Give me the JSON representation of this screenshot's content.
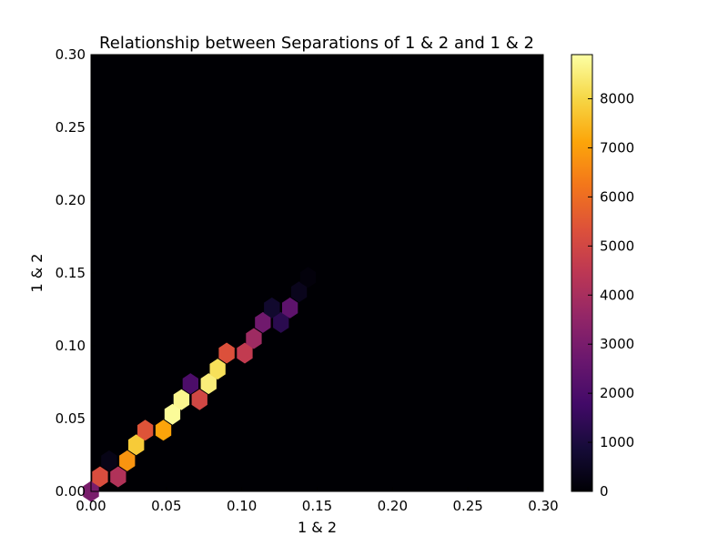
{
  "chart_data": {
    "type": "heatmap",
    "subtype": "hexbin",
    "title": "Relationship between Separations of 1 & 2 and 1 & 2",
    "xlabel": "1 & 2",
    "ylabel": "1 & 2",
    "xlim": [
      0,
      0.3
    ],
    "ylim": [
      0,
      0.3
    ],
    "x_ticks": [
      "0.00",
      "0.05",
      "0.10",
      "0.15",
      "0.20",
      "0.25",
      "0.30"
    ],
    "y_ticks": [
      "0.00",
      "0.05",
      "0.10",
      "0.15",
      "0.20",
      "0.25",
      "0.30"
    ],
    "grid": false,
    "colormap": "inferno",
    "background_color": "#000004",
    "colorbar": {
      "min": 0,
      "max": 8900,
      "ticks": [
        "0",
        "1000",
        "2000",
        "3000",
        "4000",
        "5000",
        "6000",
        "7000",
        "8000"
      ]
    },
    "cells": [
      {
        "x": 0.0,
        "y": 0.0,
        "count": 3000
      },
      {
        "x": 0.006,
        "y": 0.01,
        "count": 5200
      },
      {
        "x": 0.018,
        "y": 0.01,
        "count": 4200
      },
      {
        "x": 0.012,
        "y": 0.021,
        "count": 300
      },
      {
        "x": 0.024,
        "y": 0.021,
        "count": 6800
      },
      {
        "x": 0.03,
        "y": 0.032,
        "count": 7800
      },
      {
        "x": 0.036,
        "y": 0.042,
        "count": 5400
      },
      {
        "x": 0.048,
        "y": 0.042,
        "count": 7100
      },
      {
        "x": 0.054,
        "y": 0.053,
        "count": 8800
      },
      {
        "x": 0.06,
        "y": 0.063,
        "count": 8700
      },
      {
        "x": 0.066,
        "y": 0.074,
        "count": 2000
      },
      {
        "x": 0.072,
        "y": 0.063,
        "count": 5000
      },
      {
        "x": 0.078,
        "y": 0.074,
        "count": 8500
      },
      {
        "x": 0.084,
        "y": 0.084,
        "count": 8200
      },
      {
        "x": 0.09,
        "y": 0.095,
        "count": 5300
      },
      {
        "x": 0.102,
        "y": 0.095,
        "count": 4600
      },
      {
        "x": 0.108,
        "y": 0.105,
        "count": 3800
      },
      {
        "x": 0.114,
        "y": 0.116,
        "count": 2800
      },
      {
        "x": 0.126,
        "y": 0.116,
        "count": 1300
      },
      {
        "x": 0.12,
        "y": 0.126,
        "count": 700
      },
      {
        "x": 0.132,
        "y": 0.126,
        "count": 2400
      },
      {
        "x": 0.138,
        "y": 0.137,
        "count": 400
      },
      {
        "x": 0.144,
        "y": 0.147,
        "count": 120
      }
    ]
  }
}
